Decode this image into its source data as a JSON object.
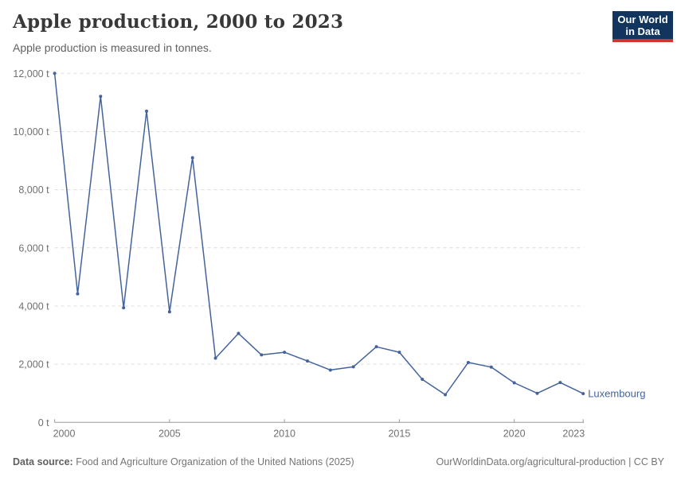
{
  "header": {
    "title": "Apple production, 2000 to 2023",
    "subtitle": "Apple production is measured in tonnes.",
    "logo": {
      "line1": "Our World",
      "line2": "in Data"
    }
  },
  "chart_data": {
    "type": "line",
    "x": [
      2000,
      2001,
      2002,
      2003,
      2004,
      2005,
      2006,
      2007,
      2008,
      2009,
      2010,
      2011,
      2012,
      2013,
      2014,
      2015,
      2016,
      2017,
      2018,
      2019,
      2020,
      2021,
      2022,
      2023
    ],
    "series": [
      {
        "name": "Luxembourg",
        "color": "#44639c",
        "values": [
          12000,
          4420,
          11210,
          3940,
          10700,
          3800,
          9100,
          2210,
          3060,
          2320,
          2410,
          2110,
          1800,
          1910,
          2600,
          2410,
          1480,
          950,
          2060,
          1900,
          1360,
          1000,
          1370,
          990
        ]
      }
    ],
    "title": "Apple production, 2000 to 2023",
    "xlabel": "",
    "ylabel": "",
    "ylim": [
      0,
      12000
    ],
    "yticks": [
      0,
      2000,
      4000,
      6000,
      8000,
      10000,
      12000
    ],
    "ytick_suffix": " t",
    "xticks": [
      2000,
      2005,
      2010,
      2015,
      2020,
      2023
    ],
    "grid": "horizontal-dashed",
    "legend_position": "end-of-line"
  },
  "footer": {
    "datasource_label": "Data source:",
    "datasource_text": " Food and Agriculture Organization of the United Nations (2025)",
    "right_text": "OurWorldinData.org/agricultural-production | CC BY"
  },
  "colors": {
    "series_blue": "#44639c",
    "gridline": "#dcdcdc",
    "axis": "#999999",
    "tick_label": "#6f6f6f",
    "title": "#383838",
    "subtitle": "#616161",
    "logo_bg": "#12355e",
    "logo_bar": "#d1342c"
  }
}
